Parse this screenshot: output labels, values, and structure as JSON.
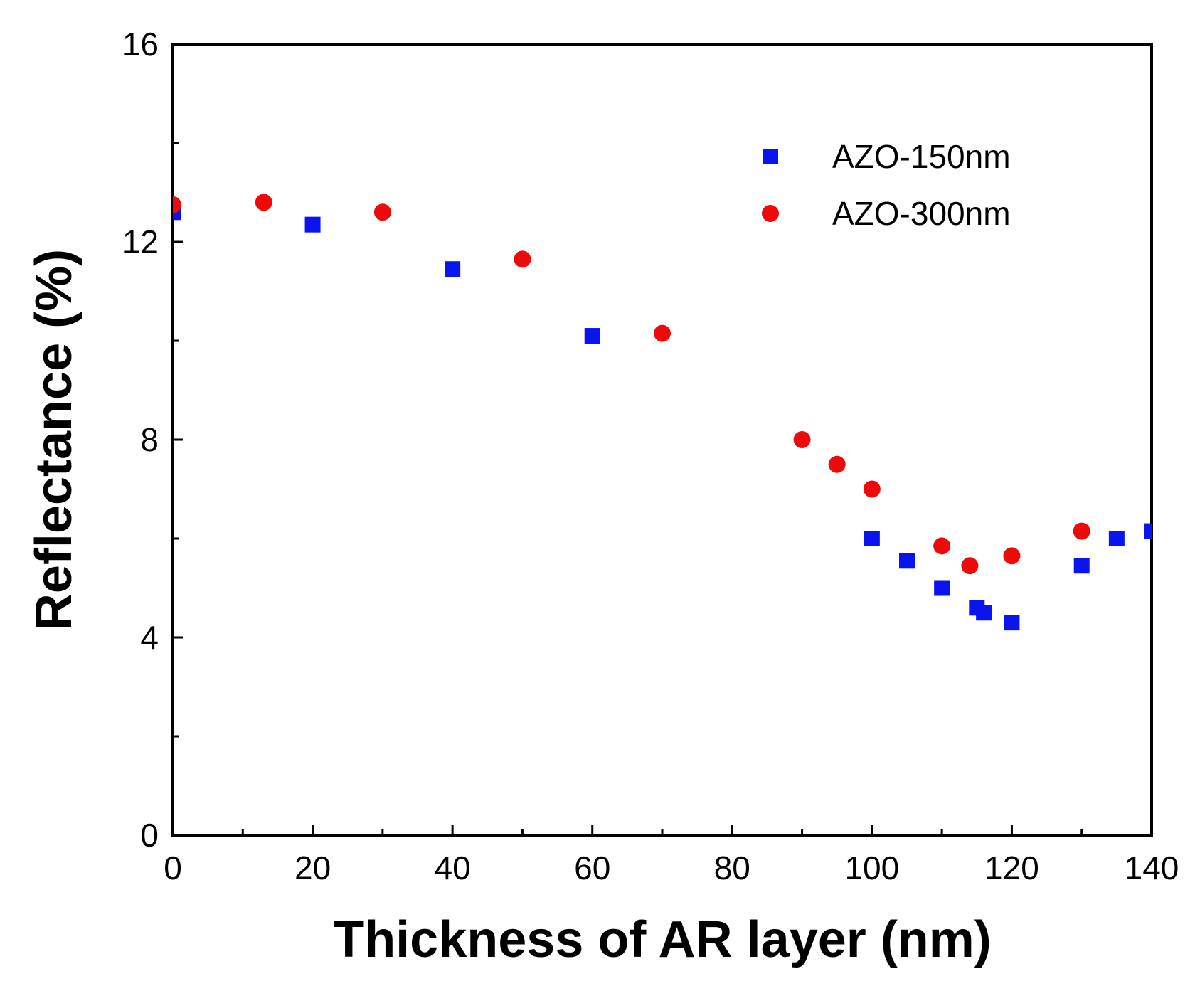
{
  "chart_data": {
    "type": "scatter",
    "title": "",
    "xlabel": "Thickness of AR layer (nm)",
    "ylabel": "Reflectance (%)",
    "xlim": [
      0,
      140
    ],
    "ylim": [
      0,
      16
    ],
    "x_ticks": [
      0,
      20,
      40,
      60,
      80,
      100,
      120,
      140
    ],
    "x_minor_ticks": [
      10,
      30,
      50,
      70,
      90,
      110,
      130
    ],
    "y_ticks": [
      0,
      4,
      8,
      12,
      16
    ],
    "y_minor_ticks": [
      2,
      6,
      10,
      14
    ],
    "grid": false,
    "legend_position": "top-right",
    "series": [
      {
        "name": "AZO-150nm",
        "marker": "square",
        "color": "#0a14ee",
        "points": [
          {
            "x": 0,
            "y": 12.6
          },
          {
            "x": 20,
            "y": 12.35
          },
          {
            "x": 40,
            "y": 11.45
          },
          {
            "x": 60,
            "y": 10.1
          },
          {
            "x": 100,
            "y": 6.0
          },
          {
            "x": 105,
            "y": 5.55
          },
          {
            "x": 110,
            "y": 5.0
          },
          {
            "x": 115,
            "y": 4.6
          },
          {
            "x": 116,
            "y": 4.5
          },
          {
            "x": 120,
            "y": 4.3
          },
          {
            "x": 130,
            "y": 5.45
          },
          {
            "x": 135,
            "y": 6.0
          },
          {
            "x": 140,
            "y": 6.15
          }
        ]
      },
      {
        "name": "AZO-300nm",
        "marker": "circle",
        "color": "#ee0a0a",
        "points": [
          {
            "x": 0,
            "y": 12.75
          },
          {
            "x": 13,
            "y": 12.8
          },
          {
            "x": 30,
            "y": 12.6
          },
          {
            "x": 50,
            "y": 11.65
          },
          {
            "x": 70,
            "y": 10.15
          },
          {
            "x": 90,
            "y": 8.0
          },
          {
            "x": 95,
            "y": 7.5
          },
          {
            "x": 100,
            "y": 7.0
          },
          {
            "x": 110,
            "y": 5.85
          },
          {
            "x": 114,
            "y": 5.45
          },
          {
            "x": 120,
            "y": 5.65
          },
          {
            "x": 130,
            "y": 6.15
          }
        ]
      }
    ]
  }
}
